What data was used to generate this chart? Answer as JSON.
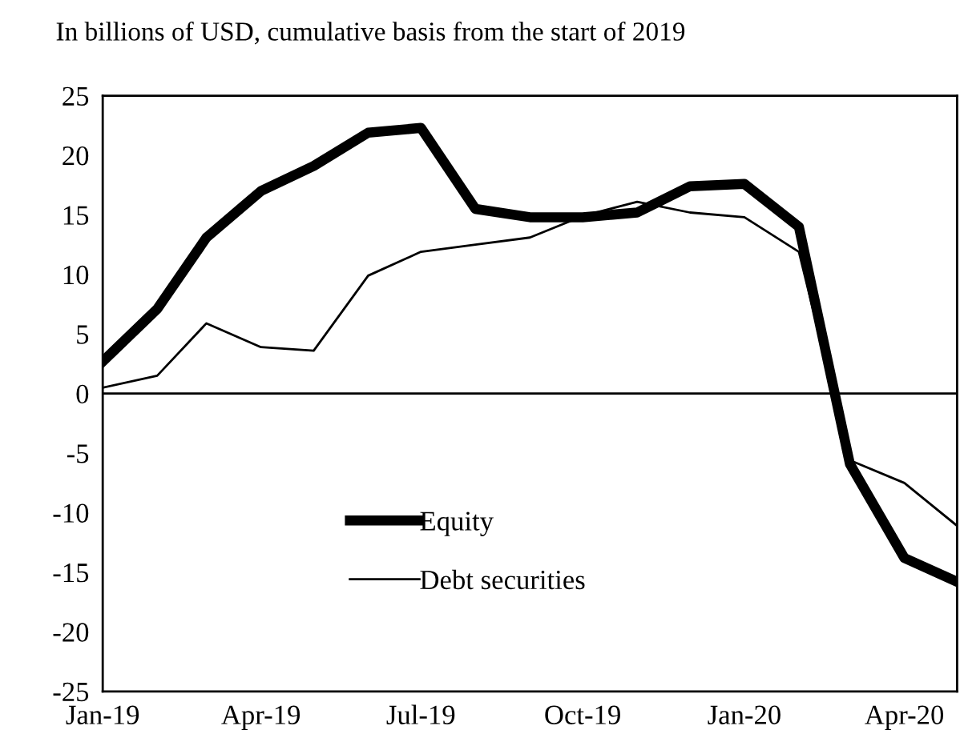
{
  "chart_data": {
    "type": "line",
    "title": "In billions of USD, cumulative basis from the start of 2019",
    "x": [
      "2019-01",
      "2019-02",
      "2019-03",
      "2019-04",
      "2019-05",
      "2019-06",
      "2019-07",
      "2019-08",
      "2019-09",
      "2019-10",
      "2019-11",
      "2019-12",
      "2020-01",
      "2020-02",
      "2020-03",
      "2020-04",
      "2020-05"
    ],
    "series": [
      {
        "name": "Equity",
        "color": "#000000",
        "values": [
          2.7,
          7.1,
          13.1,
          17.0,
          19.1,
          21.9,
          22.3,
          15.5,
          14.8,
          14.8,
          15.2,
          17.4,
          17.6,
          14.0,
          -5.9,
          -13.8,
          -15.8
        ]
      },
      {
        "name": "Debt securities",
        "color": "#000000",
        "values": [
          0.5,
          1.5,
          5.9,
          3.9,
          3.6,
          9.9,
          11.9,
          12.5,
          13.1,
          14.9,
          16.1,
          15.2,
          14.8,
          11.9,
          -5.6,
          -7.5,
          -11.1
        ]
      }
    ],
    "xlim": [
      "2019-01",
      "2020-05"
    ],
    "xticks": [
      {
        "value": "2019-01",
        "label": "Jan-19"
      },
      {
        "value": "2019-04",
        "label": "Apr-19"
      },
      {
        "value": "2019-07",
        "label": "Jul-19"
      },
      {
        "value": "2019-10",
        "label": "Oct-19"
      },
      {
        "value": "2020-01",
        "label": "Jan-20"
      },
      {
        "value": "2020-04",
        "label": "Apr-20"
      }
    ],
    "ylim": [
      -25,
      25
    ],
    "yticks": [
      -25,
      -20,
      -15,
      -10,
      -5,
      0,
      5,
      10,
      15,
      20,
      25
    ],
    "ref_lines": [
      {
        "axis": "y",
        "value": 0,
        "color": "#000000"
      }
    ],
    "grid": false,
    "legend": "bottom",
    "line_style": "solid"
  }
}
